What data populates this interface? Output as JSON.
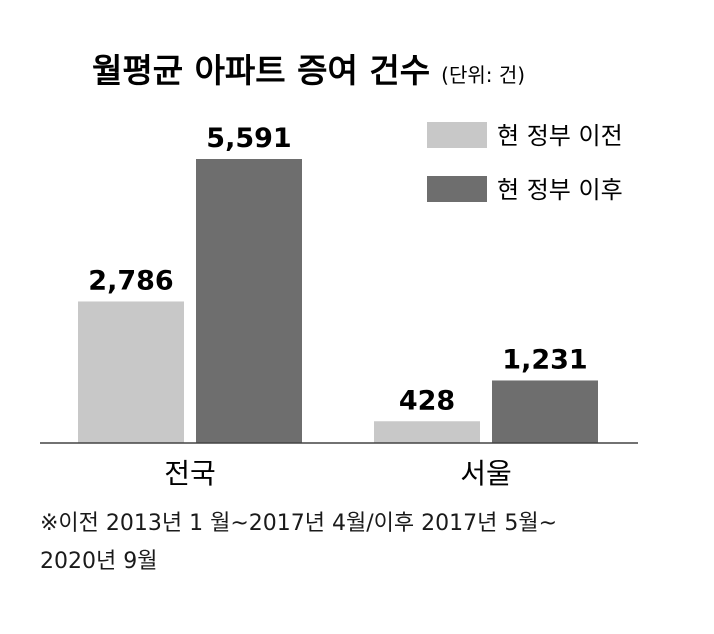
{
  "chart_data": {
    "type": "bar",
    "title": "월평균 아파트 증여 건수",
    "unit": "(단위: 건)",
    "categories": [
      "전국",
      "서울"
    ],
    "series": [
      {
        "name": "현 정부 이전",
        "color": "#c8c8c8",
        "values": [
          2786,
          428
        ]
      },
      {
        "name": "현 정부 이후",
        "color": "#6e6e6e",
        "values": [
          5591,
          1231
        ]
      }
    ],
    "value_labels": [
      [
        "2,786",
        "428"
      ],
      [
        "5,591",
        "1,231"
      ]
    ],
    "ylim": [
      0,
      5591
    ],
    "grid": false,
    "legend": "top-right",
    "footnote": [
      "※이전 2013년 1 월~2017년 4월/이후 2017년 5월~",
      "2020년 9월"
    ]
  }
}
